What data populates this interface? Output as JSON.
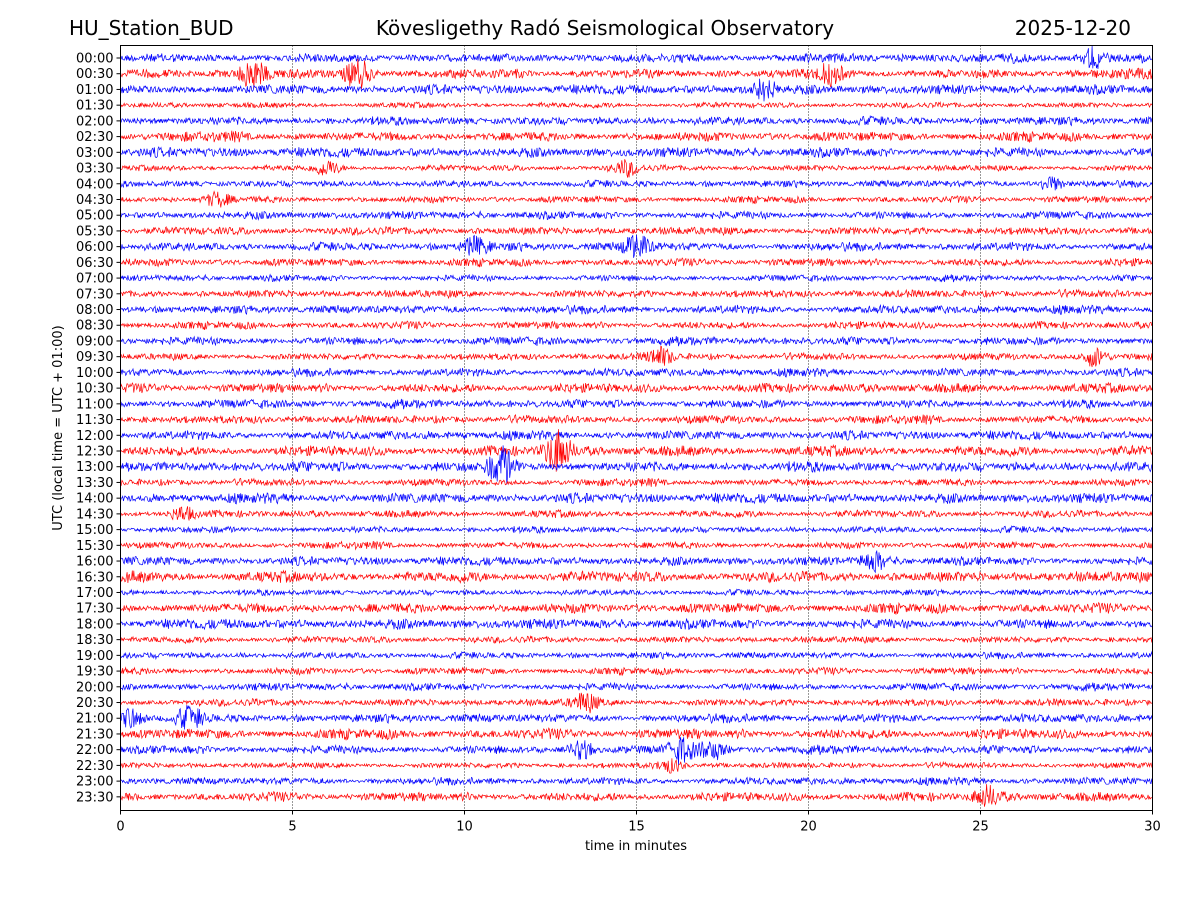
{
  "header": {
    "station": "HU_Station_BUD",
    "title": "Kövesligethy Radó Seismological Observatory",
    "date": "2025-12-20"
  },
  "chart_data": {
    "type": "line",
    "title": "Kövesligethy Radó Seismological Observatory",
    "xlabel": "time in minutes",
    "ylabel": "UTC (local time = UTC + 01:00)",
    "xlim": [
      0,
      30
    ],
    "xticks": [
      "0",
      "5",
      "10",
      "15",
      "20",
      "25",
      "30"
    ],
    "xtick_values": [
      0,
      5,
      10,
      15,
      20,
      25,
      30
    ],
    "grid": "vertical dotted at 5, 10, 15, 20, 25",
    "row_labels": [
      "00:00",
      "00:30",
      "01:00",
      "01:30",
      "02:00",
      "02:30",
      "03:00",
      "03:30",
      "04:00",
      "04:30",
      "05:00",
      "05:30",
      "06:00",
      "06:30",
      "07:00",
      "07:30",
      "08:00",
      "08:30",
      "09:00",
      "09:30",
      "10:00",
      "10:30",
      "11:00",
      "11:30",
      "12:00",
      "12:30",
      "13:00",
      "13:30",
      "14:00",
      "14:30",
      "15:00",
      "15:30",
      "16:00",
      "16:30",
      "17:00",
      "17:30",
      "18:00",
      "18:30",
      "19:00",
      "19:30",
      "20:00",
      "20:30",
      "21:00",
      "21:30",
      "22:00",
      "22:30",
      "23:00",
      "23:30"
    ],
    "series_colors": [
      "#0000ff",
      "#ff0000"
    ],
    "events": [
      {
        "row": 1,
        "minute": 3.8,
        "amplitude": 2.2
      },
      {
        "row": 1,
        "minute": 6.9,
        "amplitude": 2.4
      },
      {
        "row": 1,
        "minute": 20.6,
        "amplitude": 1.6
      },
      {
        "row": 0,
        "minute": 28.3,
        "amplitude": 1.6
      },
      {
        "row": 2,
        "minute": 18.7,
        "amplitude": 1.5
      },
      {
        "row": 7,
        "minute": 14.7,
        "amplitude": 1.8
      },
      {
        "row": 7,
        "minute": 6.0,
        "amplitude": 1.5
      },
      {
        "row": 9,
        "minute": 2.8,
        "amplitude": 1.5
      },
      {
        "row": 8,
        "minute": 27.0,
        "amplitude": 1.5
      },
      {
        "row": 12,
        "minute": 15.0,
        "amplitude": 2.0
      },
      {
        "row": 12,
        "minute": 10.3,
        "amplitude": 1.5
      },
      {
        "row": 19,
        "minute": 15.7,
        "amplitude": 1.8
      },
      {
        "row": 19,
        "minute": 28.3,
        "amplitude": 2.0
      },
      {
        "row": 25,
        "minute": 12.7,
        "amplitude": 3.0
      },
      {
        "row": 26,
        "minute": 11.1,
        "amplitude": 2.5
      },
      {
        "row": 29,
        "minute": 1.8,
        "amplitude": 1.5
      },
      {
        "row": 32,
        "minute": 21.9,
        "amplitude": 1.5
      },
      {
        "row": 41,
        "minute": 13.5,
        "amplitude": 1.8
      },
      {
        "row": 42,
        "minute": 2.0,
        "amplitude": 1.8
      },
      {
        "row": 42,
        "minute": 0.3,
        "amplitude": 1.6
      },
      {
        "row": 44,
        "minute": 16.3,
        "amplitude": 2.0
      },
      {
        "row": 44,
        "minute": 17.2,
        "amplitude": 1.6
      },
      {
        "row": 44,
        "minute": 13.4,
        "amplitude": 1.5
      },
      {
        "row": 45,
        "minute": 16.0,
        "amplitude": 1.5
      },
      {
        "row": 47,
        "minute": 25.2,
        "amplitude": 1.5
      }
    ]
  }
}
